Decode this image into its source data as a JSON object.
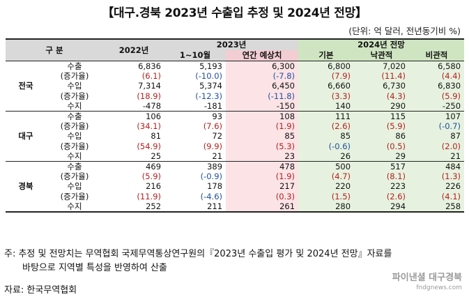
{
  "title": "【대구.경북 2023년 수출입 추정 및 2024년 전망】",
  "unit": "(단위: 억 달러, 전년동기비 %)",
  "header": {
    "gubun": "구  분",
    "y2022": "2022년",
    "y2023": "2023년",
    "m1_10": "1~10월",
    "annual_est": "연간 예상치",
    "outlook2024": "2024년 전망",
    "base": "기본",
    "optimistic": "낙관적",
    "pessimistic": "비관적"
  },
  "regions": [
    {
      "name": "전국",
      "rows": [
        {
          "label": "수출",
          "values": [
            "6,836",
            "5,193",
            "6,300",
            "6,800",
            "7,020",
            "6,580"
          ]
        },
        {
          "label": "(증가율)",
          "values": [
            "(6.1)",
            "(-10.0)",
            "(-7.8)",
            "(7.9)",
            "(11.4)",
            "(4.4)"
          ],
          "tone": [
            "r",
            "b",
            "b",
            "r",
            "r",
            "r"
          ]
        },
        {
          "label": "수입",
          "values": [
            "7,314",
            "5,374",
            "6,450",
            "6,660",
            "6,730",
            "6,830"
          ]
        },
        {
          "label": "(증가율)",
          "values": [
            "(18.9)",
            "(-12.3)",
            "(-11.8)",
            "(3.3)",
            "(4.3)",
            "(5.9)"
          ],
          "tone": [
            "r",
            "b",
            "b",
            "r",
            "r",
            "r"
          ]
        },
        {
          "label": "수지",
          "values": [
            "-478",
            "-181",
            "-150",
            "140",
            "290",
            "-250"
          ]
        }
      ]
    },
    {
      "name": "대구",
      "rows": [
        {
          "label": "수출",
          "values": [
            "106",
            "93",
            "108",
            "111",
            "115",
            "107"
          ]
        },
        {
          "label": "(증가율)",
          "values": [
            "(34.1)",
            "(7.6)",
            "(1.9)",
            "(2.6)",
            "(5.9)",
            "(-0.7)"
          ],
          "tone": [
            "r",
            "r",
            "r",
            "r",
            "r",
            "b"
          ]
        },
        {
          "label": "수입",
          "values": [
            "81",
            "72",
            "85",
            "85",
            "86",
            "87"
          ]
        },
        {
          "label": "(증가율)",
          "values": [
            "(54.9)",
            "(9.9)",
            "(5.3)",
            "(-0.6)",
            "(0.5)",
            "(2.0)"
          ],
          "tone": [
            "r",
            "r",
            "r",
            "b",
            "r",
            "r"
          ]
        },
        {
          "label": "수지",
          "values": [
            "25",
            "21",
            "23",
            "26",
            "29",
            "21"
          ]
        }
      ]
    },
    {
      "name": "경북",
      "rows": [
        {
          "label": "수출",
          "values": [
            "469",
            "389",
            "478",
            "500",
            "517",
            "484"
          ]
        },
        {
          "label": "(증가율)",
          "values": [
            "(5.9)",
            "(-0.9)",
            "(1.9)",
            "(4.7)",
            "(8.1)",
            "(1.3)"
          ],
          "tone": [
            "r",
            "b",
            "r",
            "r",
            "r",
            "r"
          ]
        },
        {
          "label": "수입",
          "values": [
            "216",
            "178",
            "217",
            "220",
            "223",
            "226"
          ]
        },
        {
          "label": "(증가율)",
          "values": [
            "(11.9)",
            "(-4.6)",
            "(0.3)",
            "(1.5)",
            "(2.6)",
            "(4.1)"
          ],
          "tone": [
            "r",
            "b",
            "r",
            "r",
            "r",
            "r"
          ]
        },
        {
          "label": "수지",
          "values": [
            "252",
            "211",
            "261",
            "280",
            "294",
            "258"
          ]
        }
      ]
    }
  ],
  "note_line1": "주: 추정 및 전망치는 무역협회 국제무역통상연구원의『2023년 수출입 평가 및 2024년 전망』자료를",
  "note_line2": "바탕으로 지역별 특성을 반영하여 산출",
  "source": "자료: 한국무역협회",
  "watermark": "파이낸셜 대구경북",
  "watermark_url": "fndgnews.com",
  "colors": {
    "positive_rate": "#b41e1e",
    "negative_rate": "#1f4e9c",
    "estimate_bg": "#fbe3e6",
    "outlook_bg": "#e6f2df"
  }
}
